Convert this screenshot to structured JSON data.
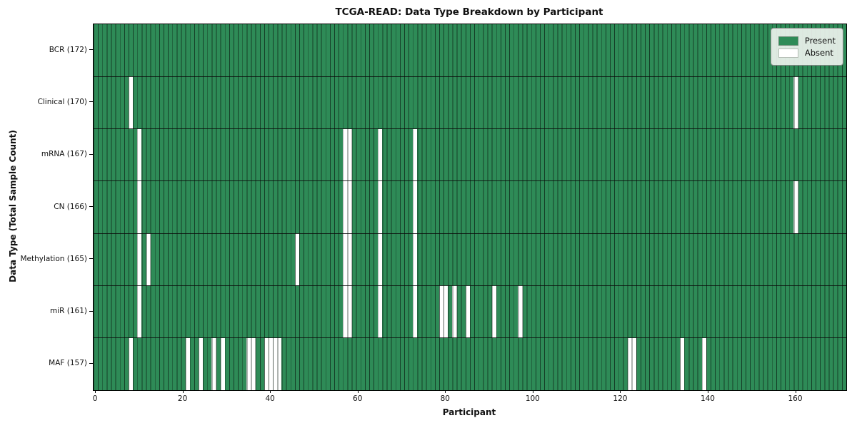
{
  "title": "TCGA-READ: Data Type Breakdown by Participant",
  "axes": {
    "xlabel": "Participant",
    "ylabel": "Data Type (Total Sample Count)",
    "x_ticks": [
      0,
      20,
      40,
      60,
      80,
      100,
      120,
      140,
      160
    ]
  },
  "legend": {
    "present_label": "Present",
    "absent_label": "Absent"
  },
  "colors": {
    "present": "#2e8b57",
    "absent": "#ffffff",
    "grid_edge": "#0a160e",
    "frame": "#000000"
  },
  "chart_data": {
    "type": "heatmap",
    "subtype": "presence-absence matrix",
    "title": "TCGA-READ: Data Type Breakdown by Participant",
    "xlabel": "Participant",
    "ylabel": "Data Type (Total Sample Count)",
    "n_participants": 172,
    "x_range": [
      0,
      171
    ],
    "grid": "on",
    "legend_position": "upper right",
    "legend_entries": [
      "Present",
      "Absent"
    ],
    "rows": [
      {
        "label": "BCR (172)",
        "data_type": "BCR",
        "total_sample_count": 172,
        "absent_participants": []
      },
      {
        "label": "Clinical (170)",
        "data_type": "Clinical",
        "total_sample_count": 170,
        "absent_participants": [
          8,
          160
        ]
      },
      {
        "label": "mRNA (167)",
        "data_type": "mRNA",
        "total_sample_count": 167,
        "absent_participants": [
          10,
          57,
          58,
          65,
          73
        ]
      },
      {
        "label": "CN (166)",
        "data_type": "CN",
        "total_sample_count": 166,
        "absent_participants": [
          10,
          57,
          58,
          65,
          73,
          160
        ]
      },
      {
        "label": "Methylation (165)",
        "data_type": "Methylation",
        "total_sample_count": 165,
        "absent_participants": [
          10,
          12,
          46,
          57,
          58,
          65,
          73
        ]
      },
      {
        "label": "miR (161)",
        "data_type": "miR",
        "total_sample_count": 161,
        "absent_participants": [
          10,
          57,
          58,
          65,
          73,
          79,
          80,
          82,
          85,
          91,
          97
        ]
      },
      {
        "label": "MAF (157)",
        "data_type": "MAF",
        "total_sample_count": 157,
        "absent_participants": [
          8,
          21,
          24,
          27,
          29,
          35,
          36,
          39,
          40,
          41,
          42,
          122,
          123,
          134,
          139
        ]
      }
    ]
  }
}
